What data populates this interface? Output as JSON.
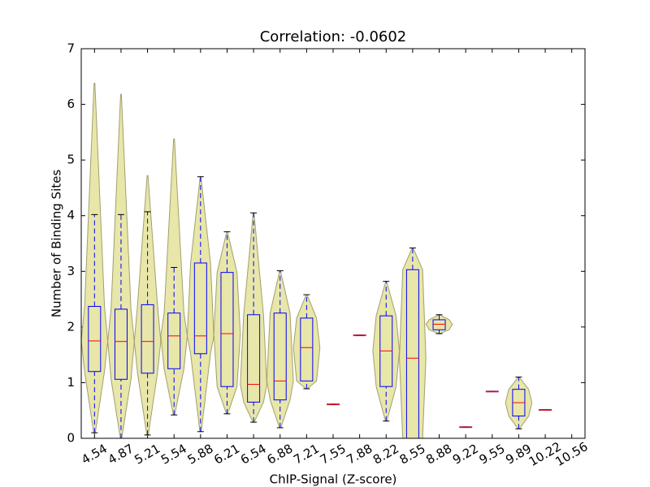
{
  "chart_data": {
    "type": "violinbox",
    "title": "Correlation: -0.0602",
    "x_label": "ChIP-Signal (Z-score)",
    "y_label": "Number of Binding Sites",
    "categories": [
      "4.54",
      "4.87",
      "5.21",
      "5.54",
      "5.88",
      "6.21",
      "6.54",
      "6.88",
      "7.21",
      "7.55",
      "7.88",
      "8.22",
      "8.55",
      "8.88",
      "9.22",
      "9.55",
      "9.89",
      "10.22",
      "10.56"
    ],
    "violin_low": [
      0.08,
      0.0,
      0.05,
      0.42,
      0.12,
      0.44,
      0.29,
      0.19,
      0.89,
      0.61,
      1.85,
      0.31,
      0.0,
      1.88,
      0.2,
      0.84,
      0.17,
      0.51,
      null
    ],
    "violin_high": [
      6.38,
      6.18,
      4.72,
      5.38,
      4.7,
      3.71,
      4.05,
      3.01,
      2.58,
      0.61,
      1.85,
      2.82,
      3.42,
      2.22,
      0.2,
      0.84,
      1.1,
      0.51,
      null
    ],
    "whisker_low": [
      0.1,
      0.0,
      0.06,
      0.42,
      0.12,
      0.44,
      0.29,
      0.19,
      0.89,
      0.61,
      1.85,
      0.31,
      0.0,
      1.88,
      0.2,
      0.84,
      0.17,
      0.51,
      null
    ],
    "q1": [
      1.2,
      1.06,
      1.17,
      1.25,
      1.52,
      0.93,
      0.65,
      0.69,
      1.03,
      0.61,
      1.85,
      0.93,
      0.0,
      1.95,
      0.2,
      0.84,
      0.4,
      0.51,
      null
    ],
    "median": [
      1.75,
      1.74,
      1.74,
      1.84,
      1.84,
      1.88,
      0.97,
      1.03,
      1.63,
      0.61,
      1.85,
      1.57,
      1.44,
      2.05,
      0.2,
      0.84,
      0.64,
      0.51,
      null
    ],
    "q3": [
      2.37,
      2.32,
      2.4,
      2.25,
      3.15,
      2.98,
      2.22,
      2.25,
      2.16,
      0.61,
      1.85,
      2.2,
      3.03,
      2.13,
      0.2,
      0.84,
      0.88,
      0.51,
      null
    ],
    "whisker_high": [
      4.02,
      4.02,
      4.07,
      3.07,
      4.7,
      3.71,
      4.05,
      3.01,
      2.58,
      0.61,
      1.85,
      2.82,
      3.42,
      2.22,
      0.2,
      0.84,
      1.1,
      0.51,
      null
    ],
    "violin_color": "#e8e6a8",
    "box_color": "#0000ff",
    "median_color": "#ff0000",
    "ylim": [
      0,
      7
    ],
    "yticks": [
      0,
      1,
      2,
      3,
      4,
      5,
      6,
      7
    ]
  }
}
